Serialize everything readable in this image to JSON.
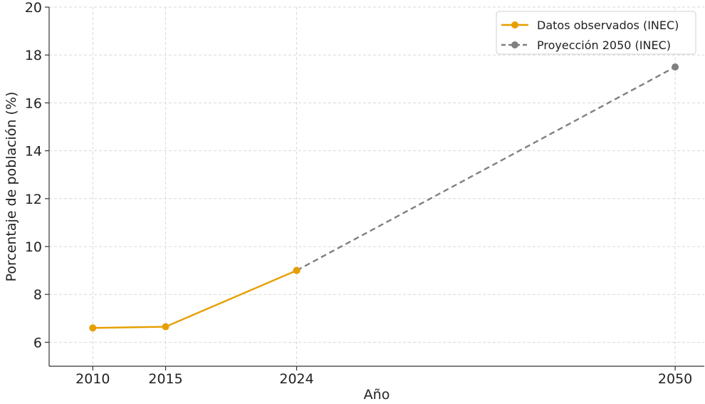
{
  "chart_data": {
    "type": "line",
    "xlabel": "Año",
    "ylabel": "Porcentaje de población (%)",
    "xticks": [
      2010,
      2015,
      2024,
      2050
    ],
    "yticks": [
      6,
      8,
      10,
      12,
      14,
      16,
      18,
      20
    ],
    "xlim": [
      2007,
      2052
    ],
    "ylim": [
      5,
      20
    ],
    "grid": true,
    "legend_position": "top-right",
    "series": [
      {
        "name": "Datos observados (INEC)",
        "color": "#E69F00",
        "style": "solid",
        "marker": "circle",
        "points": [
          [
            2010,
            6.6
          ],
          [
            2015,
            6.65
          ],
          [
            2024,
            9.0
          ]
        ]
      },
      {
        "name": "Proyección 2050 (INEC)",
        "color": "#808080",
        "style": "dashed",
        "marker": "circle",
        "points": [
          [
            2024,
            9.0
          ],
          [
            2050,
            17.5
          ]
        ]
      }
    ]
  }
}
